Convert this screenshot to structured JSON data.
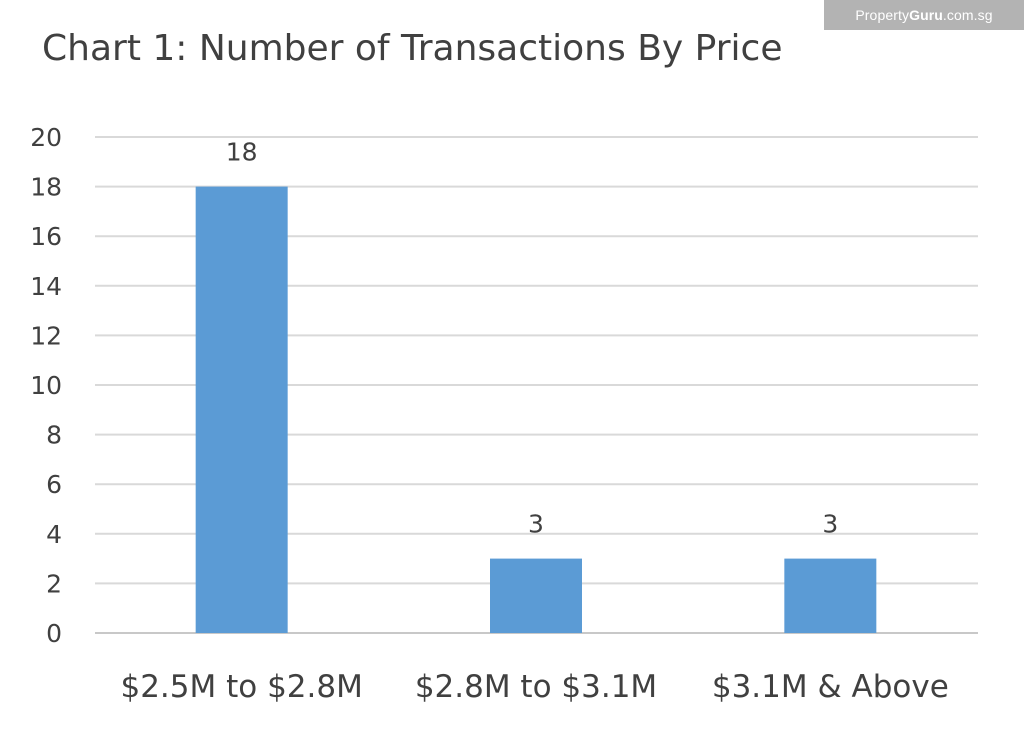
{
  "watermark": {
    "prefix": "Property",
    "brand": "Guru",
    "suffix": ".com.sg"
  },
  "chart_data": {
    "type": "bar",
    "title": "Chart 1: Number of Transactions By Price",
    "categories": [
      "$2.5M to $2.8M",
      "$2.8M to $3.1M",
      "$3.1M & Above"
    ],
    "values": [
      18,
      3,
      3
    ],
    "data_labels": [
      "18",
      "3",
      "3"
    ],
    "xlabel": "",
    "ylabel": "",
    "ylim": [
      0,
      20
    ],
    "yticks": [
      0,
      2,
      4,
      6,
      8,
      10,
      12,
      14,
      16,
      18,
      20
    ],
    "grid": true,
    "legend": "none",
    "bar_color": "#5b9bd5"
  }
}
